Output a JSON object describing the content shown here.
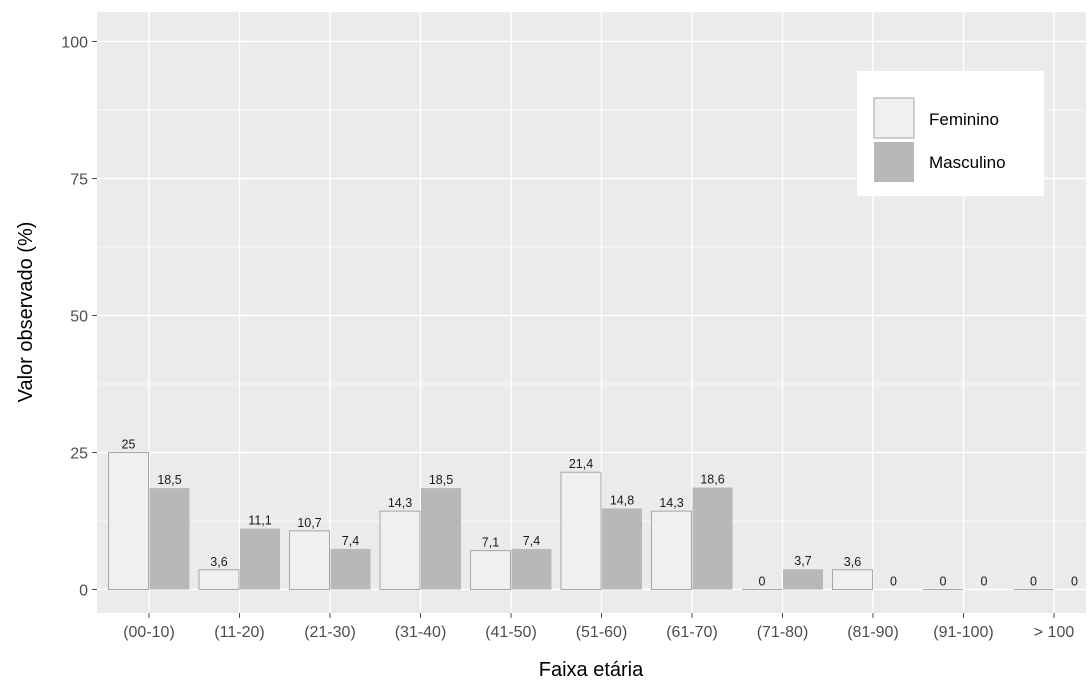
{
  "chart_data": {
    "type": "bar",
    "title": "",
    "xlabel": "Faixa etária",
    "ylabel": "Valor observado (%)",
    "categories": [
      "(00-10)",
      "(11-20)",
      "(21-30)",
      "(31-40)",
      "(41-50)",
      "(51-60)",
      "(61-70)",
      "(71-80)",
      "(81-90)",
      "(91-100)",
      "> 100"
    ],
    "series": [
      {
        "name": "Feminino",
        "color": "#f0f0f0",
        "values": [
          25,
          3.6,
          10.7,
          14.3,
          7.1,
          21.4,
          14.3,
          0,
          3.6,
          0,
          0
        ],
        "labels": [
          "25",
          "3,6",
          "10,7",
          "14,3",
          "7,1",
          "21,4",
          "14,3",
          "0",
          "3,6",
          "0",
          "0"
        ]
      },
      {
        "name": "Masculino",
        "color": "#b8b8b8",
        "values": [
          18.5,
          11.1,
          7.4,
          18.5,
          7.4,
          14.8,
          18.6,
          3.7,
          0,
          0,
          0
        ],
        "labels": [
          "18,5",
          "11,1",
          "7,4",
          "18,5",
          "7,4",
          "14,8",
          "18,6",
          "3,7",
          "0",
          "0",
          "0"
        ]
      }
    ],
    "yticks": [
      0,
      25,
      50,
      75,
      100
    ],
    "ylim": [
      -4.5,
      105.5
    ],
    "grid": true,
    "legend_position": "top-right",
    "panel_background": "#ebebeb",
    "grid_color": "#ffffff"
  }
}
